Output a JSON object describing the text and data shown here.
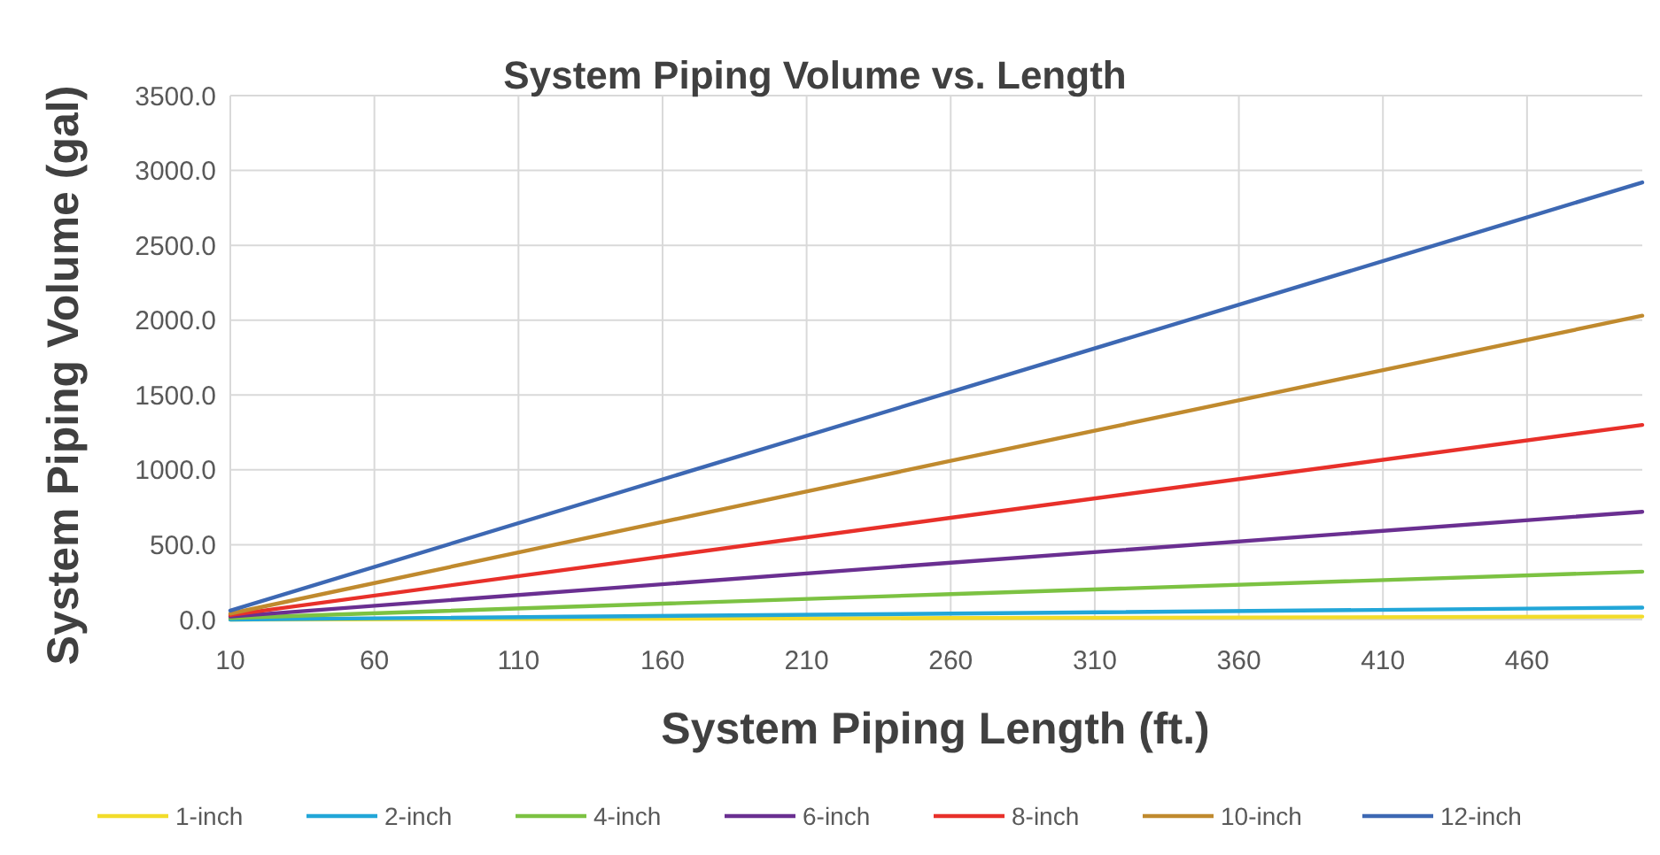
{
  "chart_data": {
    "type": "line",
    "title": "System Piping Volume vs. Length",
    "xlabel": "System Piping Length (ft.)",
    "ylabel": "System Piping Volume (gal)",
    "xlim": [
      10,
      500
    ],
    "xticks": [
      10,
      60,
      110,
      160,
      210,
      260,
      310,
      360,
      410,
      460
    ],
    "ylim": [
      0,
      3500
    ],
    "yticks": [
      {
        "value": 0,
        "label": "0.0"
      },
      {
        "value": 500,
        "label": "500.0"
      },
      {
        "value": 1000,
        "label": "1000.0"
      },
      {
        "value": 1500,
        "label": "1500.0"
      },
      {
        "value": 2000,
        "label": "2000.0"
      },
      {
        "value": 2500,
        "label": "2500.0"
      },
      {
        "value": 3000,
        "label": "3000.0"
      },
      {
        "value": 3500,
        "label": "3500.0"
      }
    ],
    "grid": true,
    "legend": "bottom",
    "marker": "none",
    "line_style": "solid",
    "x": [
      10,
      260,
      500
    ],
    "series": [
      {
        "name": "1-inch",
        "color": "#f2dc2a",
        "values": [
          0,
          10,
          20
        ]
      },
      {
        "name": "2-inch",
        "color": "#22a6d8",
        "values": [
          0,
          40,
          80
        ]
      },
      {
        "name": "4-inch",
        "color": "#7cc242",
        "values": [
          10,
          170,
          320
        ]
      },
      {
        "name": "6-inch",
        "color": "#6a2f91",
        "values": [
          20,
          380,
          720
        ]
      },
      {
        "name": "8-inch",
        "color": "#e8302a",
        "values": [
          30,
          680,
          1300
        ]
      },
      {
        "name": "10-inch",
        "color": "#c08a2e",
        "values": [
          40,
          1060,
          2030
        ]
      },
      {
        "name": "12-inch",
        "color": "#3d68b3",
        "values": [
          60,
          1520,
          2920
        ]
      }
    ]
  }
}
